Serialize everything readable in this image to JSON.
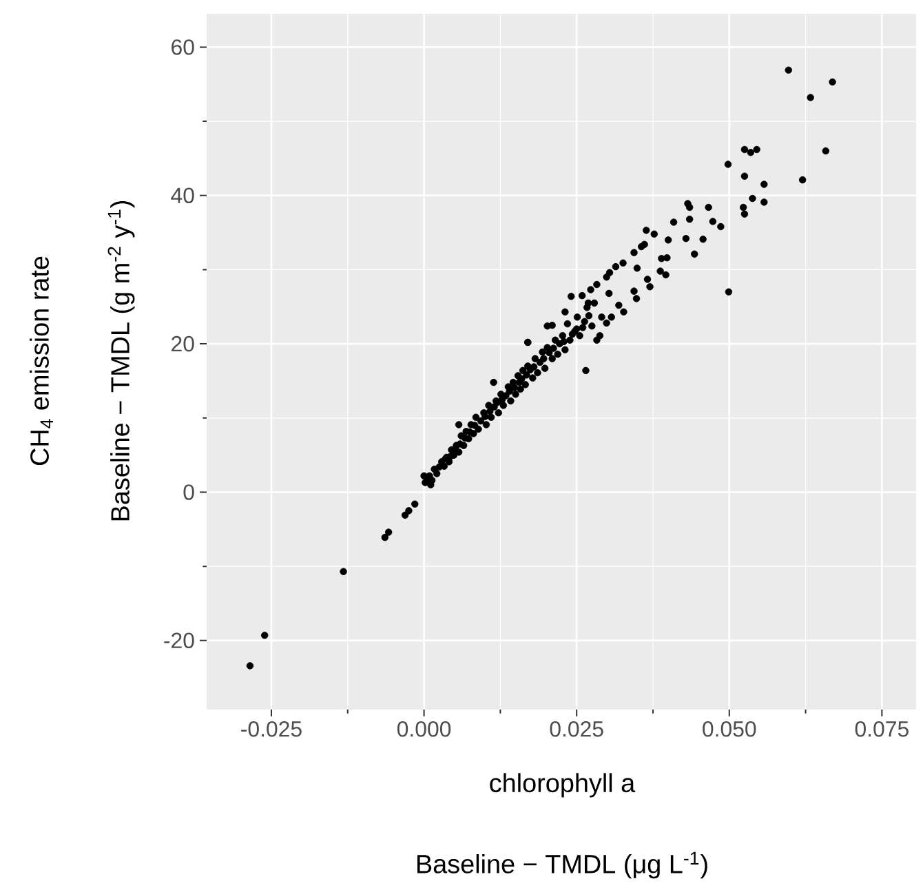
{
  "chart_data": {
    "type": "scatter",
    "xlabel": [
      "chlorophyll a",
      "Baseline − TMDL (μg L$^{-1}$)"
    ],
    "ylabel": [
      "CH$_{4}$ emission rate",
      "Baseline − TMDL (g m$^{-2}$ y$^{-1}$)"
    ],
    "xlim": [
      -0.0356,
      0.0806
    ],
    "ylim": [
      -29.3,
      64.5
    ],
    "xticks": [
      -0.025,
      {
        "value": 0,
        "label": "0.000"
      },
      0.025,
      {
        "value": 0.05,
        "label": "0.050"
      },
      0.075
    ],
    "yticks": [
      -20,
      0,
      20,
      40,
      60
    ],
    "grid": true,
    "marker": "circle",
    "series": [
      {
        "color": "#000000",
        "x": [
          -0.0285,
          -0.0261,
          -0.0132,
          -0.0064,
          -0.0058,
          -0.0031,
          -0.0025,
          -0.0015,
          0.0597,
          0.0669,
          0.0633,
          0.0658,
          0.062,
          0.0525,
          0.0535,
          0.0545,
          0.0498,
          0.0525,
          0.0557,
          0.0538,
          0.0557,
          0.0523,
          0.0525,
          0.0499,
          0.0432,
          0.0435,
          0.0466,
          0.0435,
          0.0473,
          0.0486,
          0.0409,
          0.0364,
          0.0377,
          0.04,
          0.0429,
          0.0457,
          0.0443,
          0.0361,
          0.0356,
          0.0344,
          0.0398,
          0.0389,
          0.0326,
          0.0314,
          0.0349,
          0.0387,
          0.0396,
          0.0366,
          0.037,
          0.0348,
          0.0344,
          0.0304,
          0.0299,
          0.0283,
          0.0273,
          0.0241,
          0.0269,
          0.0303,
          0.0319,
          0.0327,
          0.0307,
          0.0299,
          0.0288,
          0.0265,
          0.0231,
          0.021,
          0.017,
          0.0114,
          0.0057,
          0,
          0.0002,
          0.0009,
          0.0013,
          0.0017,
          0.0021,
          0.0029,
          0.0033,
          0.0037,
          0.0041,
          0.0045,
          0.0049,
          0.0053,
          0.0057,
          0.0061,
          0.0065,
          0.0069,
          0.0073,
          0.0077,
          0.0081,
          0.0085,
          0.0089,
          0.0098,
          0.0102,
          0.0106,
          0.011,
          0.0118,
          0.0122,
          0.0126,
          0.013,
          0.0138,
          0.0142,
          0.0146,
          0.015,
          0.0154,
          0.0158,
          0.0162,
          0.0166,
          0.017,
          0.0178,
          0.0182,
          0.0186,
          0.0194,
          0.0198,
          0.0202,
          0.021,
          0.0215,
          0.0219,
          0.0227,
          0.0231,
          0.0235,
          0.0239,
          0.0247,
          0.0251,
          0.0255,
          0.0263,
          0.0267,
          0.0275,
          0.0279,
          0.0259,
          0.0291,
          0.0283,
          0.017,
          0.0202,
          0.0005,
          0.0011,
          0.0025,
          0.0035,
          0.0043,
          0.0051,
          0.0059,
          0.0067,
          0.0075,
          0.0083,
          0.0093,
          0.01,
          0.0108,
          0.0115,
          0.012,
          0.0128,
          0.0134,
          0.014,
          0.0148,
          0.0156,
          0.016,
          0.0168,
          0.0174,
          0.018,
          0.019,
          0.0196,
          0.0205,
          0.0212,
          0.0222,
          0.0229,
          0.0243,
          0.025,
          0.026,
          0.027
        ],
        "values": [
          -23.4,
          -19.3,
          -10.7,
          -6.1,
          -5.4,
          -3.1,
          -2.5,
          -1.6,
          56.9,
          55.3,
          53.2,
          46.0,
          42.1,
          46.2,
          45.8,
          46.2,
          44.2,
          42.6,
          41.5,
          39.6,
          39.1,
          38.4,
          37.5,
          27.0,
          38.9,
          38.4,
          38.4,
          36.8,
          36.5,
          35.8,
          36.4,
          35.3,
          34.8,
          34.0,
          34.2,
          34.1,
          32.1,
          33.4,
          33.1,
          32.3,
          31.6,
          31.5,
          30.9,
          30.4,
          30.2,
          29.8,
          29.3,
          28.7,
          27.7,
          26.1,
          27.1,
          29.6,
          29.0,
          28.0,
          27.3,
          26.4,
          25.5,
          26.8,
          25.2,
          24.3,
          23.6,
          22.8,
          21.1,
          16.4,
          24.3,
          22.5,
          20.2,
          14.8,
          9.1,
          2.2,
          1.3,
          2.2,
          1.6,
          3.1,
          2.5,
          4.1,
          3.5,
          4.7,
          4.1,
          5.7,
          5.0,
          6.3,
          5.4,
          7.6,
          6.3,
          8.2,
          7.2,
          9.1,
          7.9,
          10.1,
          8.5,
          10.7,
          9.1,
          11.7,
          10.1,
          12.3,
          10.7,
          13.2,
          11.7,
          14.2,
          12.3,
          14.8,
          13.2,
          15.7,
          13.9,
          16.4,
          14.5,
          17.0,
          15.4,
          18.0,
          16.1,
          18.9,
          16.7,
          19.5,
          18.0,
          20.5,
          18.6,
          21.1,
          19.2,
          22.7,
          20.5,
          21.7,
          23.6,
          21.1,
          23.0,
          24.9,
          22.4,
          25.5,
          26.5,
          23.6,
          20.5,
          20.2,
          22.4,
          1.8,
          1.0,
          3.4,
          4.5,
          4.8,
          5.8,
          6.5,
          7.3,
          8.1,
          9.0,
          9.6,
          10.2,
          10.9,
          11.5,
          12.1,
          12.5,
          13.0,
          13.6,
          14.1,
          14.8,
          15.3,
          15.8,
          16.5,
          16.9,
          17.5,
          18.0,
          18.8,
          19.4,
          20.0,
          20.3,
          21.3,
          22.0,
          22.2,
          23.8
        ]
      }
    ]
  }
}
